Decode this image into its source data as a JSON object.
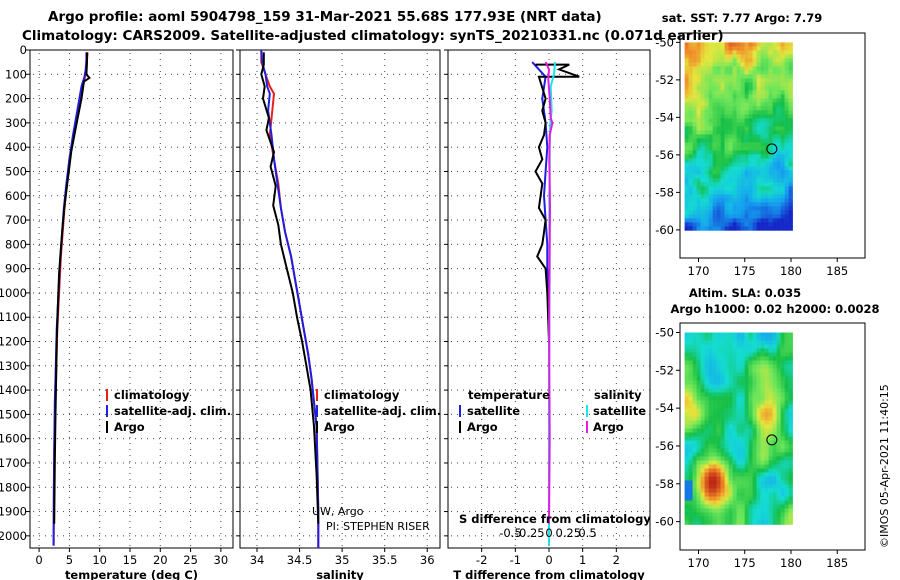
{
  "header": {
    "title_line1": "Argo profile: aoml 5904798_159 31-Mar-2021 55.68S 177.93E (NRT data)",
    "title_line2": "Climatology: CARS2009. Satellite-adjusted climatology: synTS_20210331.nc (0.071d earlier)"
  },
  "colors": {
    "red": "#e8201c",
    "blue": "#1f1fe0",
    "black": "#000000",
    "cyan": "#19e6e6",
    "magenta": "#e619e6"
  },
  "depth_axis": {
    "ylim": [
      0,
      2050
    ],
    "ticks": [
      0,
      100,
      200,
      300,
      400,
      500,
      600,
      700,
      800,
      900,
      1000,
      1100,
      1200,
      1300,
      1400,
      1500,
      1600,
      1700,
      1800,
      1900,
      2000
    ]
  },
  "chart_data": [
    {
      "type": "line",
      "id": "temperature",
      "xlabel": "temperature (deg C)",
      "ylabel": "depth",
      "xlim": [
        -1.5,
        32
      ],
      "xticks": [
        0,
        5,
        10,
        15,
        20,
        25,
        30
      ],
      "series": [
        {
          "name": "climatology",
          "color": "#e8201c",
          "x": [
            8.0,
            7.9,
            7.8,
            7.6,
            7.2,
            6.5,
            5.7,
            5.0,
            4.6,
            4.2,
            3.9,
            3.6,
            3.4,
            3.2,
            3.0,
            2.9,
            2.8,
            2.7,
            2.6,
            2.5,
            2.45,
            2.4
          ],
          "y": [
            10,
            40,
            80,
            110,
            150,
            250,
            350,
            450,
            550,
            650,
            750,
            850,
            950,
            1050,
            1150,
            1250,
            1350,
            1450,
            1550,
            1650,
            1800,
            2040
          ]
        },
        {
          "name": "satellite-adj. clim.",
          "color": "#1f1fe0",
          "x": [
            7.8,
            7.8,
            7.7,
            7.5,
            7.0,
            6.3,
            5.6,
            5.0,
            4.5,
            4.1,
            3.8,
            3.5,
            3.3,
            3.1,
            2.9,
            2.8,
            2.7,
            2.6,
            2.55,
            2.5,
            2.45,
            2.4
          ],
          "y": [
            10,
            40,
            80,
            110,
            150,
            250,
            350,
            450,
            550,
            650,
            750,
            850,
            950,
            1050,
            1150,
            1250,
            1350,
            1450,
            1550,
            1650,
            1800,
            2040
          ]
        },
        {
          "name": "Argo",
          "color": "#000000",
          "x": [
            7.9,
            7.9,
            7.8,
            8.3,
            7.4,
            7.0,
            6.2,
            5.3,
            4.8,
            4.3,
            3.9,
            3.6,
            3.3,
            3.1,
            2.9,
            2.8,
            2.7,
            2.6,
            2.5
          ],
          "y": [
            10,
            50,
            100,
            115,
            130,
            200,
            300,
            420,
            520,
            620,
            720,
            820,
            920,
            1050,
            1200,
            1350,
            1500,
            1700,
            1950
          ]
        }
      ],
      "legend": [
        {
          "label": "climatology",
          "color": "#e8201c"
        },
        {
          "label": "satellite-adj. clim.",
          "color": "#1f1fe0"
        },
        {
          "label": "Argo",
          "color": "#000000"
        }
      ]
    },
    {
      "type": "line",
      "id": "salinity",
      "xlabel": "salinity",
      "ylabel": "depth",
      "xlim": [
        33.8,
        36.15
      ],
      "xticks": [
        34,
        34.5,
        35,
        35.5,
        36
      ],
      "tick_labels": [
        "34",
        "34.5",
        "35",
        "35.5",
        "36"
      ],
      "series": [
        {
          "name": "climatology",
          "color": "#e8201c",
          "x": [
            34.05,
            34.05,
            34.1,
            34.15,
            34.2,
            34.18,
            34.15,
            34.2,
            34.25,
            34.28,
            34.33,
            34.4,
            34.45,
            34.5,
            34.55,
            34.6,
            34.64,
            34.67,
            34.7,
            34.71,
            34.72,
            34.72
          ],
          "y": [
            0,
            50,
            100,
            150,
            180,
            250,
            350,
            450,
            550,
            650,
            750,
            850,
            950,
            1050,
            1150,
            1250,
            1350,
            1450,
            1550,
            1700,
            1900,
            2050
          ]
        },
        {
          "name": "satellite-adj. clim.",
          "color": "#1f1fe0",
          "x": [
            34.05,
            34.06,
            34.1,
            34.12,
            34.15,
            34.13,
            34.17,
            34.2,
            34.24,
            34.28,
            34.33,
            34.4,
            34.45,
            34.5,
            34.55,
            34.6,
            34.64,
            34.67,
            34.7,
            34.71,
            34.72,
            34.72
          ],
          "y": [
            0,
            50,
            100,
            150,
            180,
            250,
            350,
            450,
            550,
            650,
            750,
            850,
            950,
            1050,
            1150,
            1250,
            1350,
            1450,
            1550,
            1700,
            1900,
            2050
          ]
        },
        {
          "name": "Argo",
          "color": "#000000",
          "x": [
            34.08,
            34.08,
            34.05,
            34.09,
            34.07,
            34.14,
            34.11,
            34.2,
            34.16,
            34.22,
            34.19,
            34.25,
            34.28,
            34.35,
            34.42,
            34.47,
            34.53,
            34.58,
            34.63,
            34.67,
            34.7,
            34.72
          ],
          "y": [
            10,
            60,
            100,
            150,
            200,
            280,
            330,
            420,
            480,
            560,
            640,
            720,
            800,
            900,
            1000,
            1100,
            1200,
            1300,
            1400,
            1550,
            1750,
            1950
          ]
        }
      ],
      "legend": [
        {
          "label": "climatology",
          "color": "#e8201c"
        },
        {
          "label": "satellite-adj. clim.",
          "color": "#1f1fe0"
        },
        {
          "label": "Argo",
          "color": "#000000"
        }
      ],
      "annotation_line1": "UW, Argo",
      "annotation_line2": "PI: STEPHEN RISER"
    },
    {
      "type": "line",
      "id": "difference",
      "xlabel": "T difference from climatology",
      "top_xlabel": "S difference from climatology",
      "ylabel": "depth",
      "xlim": [
        -3,
        3
      ],
      "xticks": [
        -2,
        -1,
        0,
        1,
        2
      ],
      "top_ticks": [
        -0.5,
        -0.25,
        0,
        0.25,
        0.5
      ],
      "top_tick_labels": [
        "-0.5",
        "-0.25",
        "0",
        "0.25",
        "0.5"
      ],
      "series": [
        {
          "name": "temperature: satellite",
          "color": "#1f1fe0",
          "x": [
            -0.5,
            -0.3,
            -0.1,
            -0.2,
            -0.1,
            -0.05,
            -0.1,
            -0.15,
            -0.1,
            -0.05,
            -0.05,
            0,
            0,
            0,
            0,
            0,
            0,
            0,
            0
          ],
          "y": [
            50,
            80,
            110,
            200,
            300,
            400,
            500,
            600,
            700,
            800,
            900,
            1000,
            1100,
            1200,
            1300,
            1400,
            1500,
            1700,
            2040
          ]
        },
        {
          "name": "temperature: Argo",
          "color": "#000000",
          "x": [
            -0.4,
            0.6,
            0.3,
            0.9,
            -0.3,
            -0.1,
            -0.2,
            -0.1,
            -0.15,
            -0.3,
            -0.2,
            -0.4,
            -0.2,
            -0.25,
            -0.3,
            -0.1,
            -0.15,
            -0.2,
            -0.35,
            -0.1,
            -0.05,
            0
          ],
          "y": [
            60,
            60,
            80,
            110,
            110,
            200,
            250,
            300,
            350,
            400,
            450,
            500,
            550,
            600,
            650,
            700,
            750,
            800,
            850,
            900,
            1000,
            1200
          ]
        },
        {
          "name": "salinity: satellite",
          "color": "#19e6e6",
          "x": [
            0.18,
            0.15,
            0.05,
            0.08,
            0.04,
            0.02,
            0.02,
            0.01,
            0.01,
            0.02,
            0.01,
            0,
            0,
            0
          ],
          "y": [
            50,
            100,
            150,
            250,
            300,
            400,
            500,
            600,
            700,
            900,
            1100,
            1300,
            1600,
            2040
          ]
        },
        {
          "name": "salinity: Argo",
          "color": "#e619e6",
          "x": [
            -0.1,
            0,
            -0.02,
            0.02,
            0.05,
            0.1,
            0.02,
            0.01,
            0.02,
            0.03,
            0.02,
            0.01,
            0.01,
            0.02,
            0.0
          ],
          "y": [
            50,
            80,
            120,
            200,
            280,
            300,
            350,
            450,
            550,
            650,
            800,
            1000,
            1300,
            1600,
            1950
          ]
        }
      ],
      "legend_temperature_title": "temperature",
      "legend_salinity_title": "salinity",
      "legend_temperature": [
        {
          "label": "satellite",
          "color": "#1f1fe0"
        },
        {
          "label": "Argo",
          "color": "#000000"
        }
      ],
      "legend_salinity": [
        {
          "label": "satellite",
          "color": "#19e6e6"
        },
        {
          "label": "Argo",
          "color": "#e619e6"
        }
      ]
    },
    {
      "type": "heatmap",
      "id": "sst_map",
      "title": "sat. SST: 7.77 Argo: 7.79",
      "xlim": [
        168,
        188
      ],
      "ylim": [
        -61.5,
        -49.5
      ],
      "xticks": [
        170,
        175,
        180,
        185
      ],
      "yticks": [
        -50,
        -52,
        -54,
        -56,
        -58,
        -60
      ],
      "data_extent": {
        "lon": [
          168.5,
          180
        ],
        "lat": [
          -60,
          -50
        ]
      },
      "argo_position": {
        "lon": 177.93,
        "lat": -55.68
      }
    },
    {
      "type": "heatmap",
      "id": "sla_map",
      "title_line1": "Altim. SLA: 0.035",
      "title_line2": "Argo h1000: 0.02 h2000: 0.0028",
      "xlim": [
        168,
        188
      ],
      "ylim": [
        -61.5,
        -49.5
      ],
      "xticks": [
        170,
        175,
        180,
        185
      ],
      "yticks": [
        -50,
        -52,
        -54,
        -56,
        -58,
        -60
      ],
      "data_extent": {
        "lon": [
          168.5,
          180
        ],
        "lat": [
          -60,
          -50
        ]
      },
      "argo_position": {
        "lon": 177.93,
        "lat": -55.68
      }
    }
  ],
  "footer": {
    "credit": "©IMOS 05-Apr-2021 11:40:15"
  }
}
